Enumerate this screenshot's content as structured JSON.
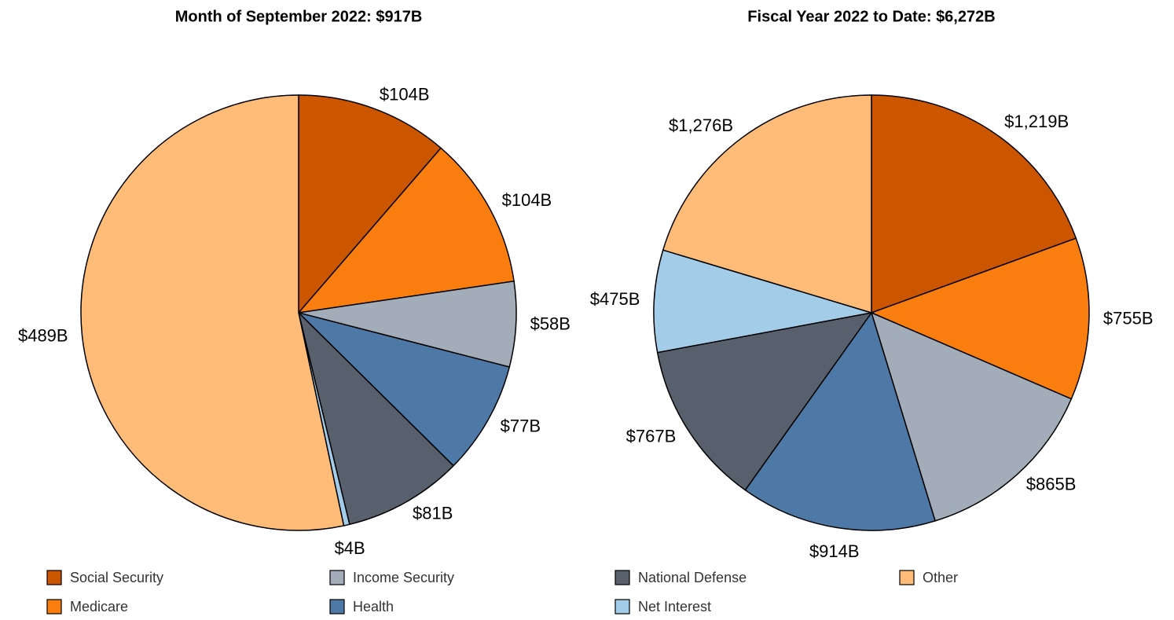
{
  "chart_data": [
    {
      "type": "pie",
      "title": "Month of September 2022: $917B",
      "categories": [
        "Social Security",
        "Medicare",
        "Income Security",
        "Health",
        "National Defense",
        "Net Interest",
        "Other"
      ],
      "values": [
        104,
        104,
        58,
        77,
        81,
        4,
        489
      ],
      "value_labels": [
        "$104B",
        "$104B",
        "$58B",
        "$77B",
        "$81B",
        "$4B",
        "$489B"
      ],
      "colors": [
        "#cc5500",
        "#fa7e0f",
        "#a3acb9",
        "#4e79a7",
        "#57606c",
        "#a3cce9",
        "#ffbc79"
      ]
    },
    {
      "type": "pie",
      "title": "Fiscal Year 2022 to Date: $6,272B",
      "categories": [
        "Social Security",
        "Medicare",
        "Income Security",
        "Health",
        "National Defense",
        "Net Interest",
        "Other"
      ],
      "values": [
        1219,
        755,
        865,
        914,
        767,
        475,
        1276
      ],
      "value_labels": [
        "$1,219B",
        "$755B",
        "$865B",
        "$914B",
        "$767B",
        "$475B",
        "$1,276B"
      ],
      "colors": [
        "#cc5500",
        "#fa7e0f",
        "#a3acb9",
        "#4e79a7",
        "#57606c",
        "#a3cce9",
        "#ffbc79"
      ]
    }
  ]
}
